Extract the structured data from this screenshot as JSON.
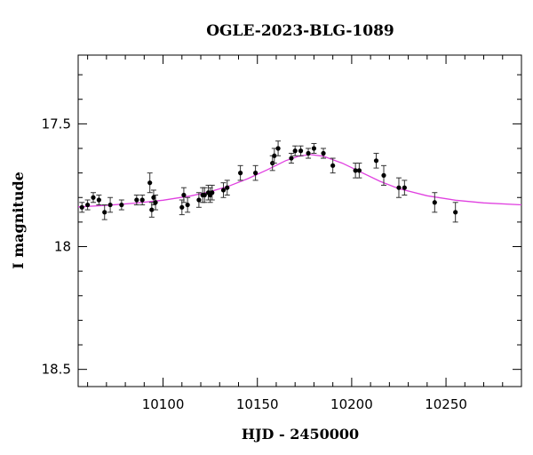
{
  "chart_data": {
    "type": "scatter",
    "title": "OGLE-2023-BLG-1089",
    "xlabel": "HJD - 2450000",
    "ylabel": "I magnitude",
    "xlim": [
      10055,
      10290
    ],
    "ylim": [
      18.57,
      17.22
    ],
    "y_inverted": true,
    "x_ticks": [
      10100,
      10150,
      10200,
      10250
    ],
    "x_tick_labels": [
      "10100",
      "10150",
      "10200",
      "10250"
    ],
    "y_ticks": [
      17.5,
      18,
      18.5
    ],
    "y_tick_labels": [
      "17.5",
      "18",
      "18.5"
    ],
    "grid": false,
    "legend": "none",
    "colors": {
      "points": "#000000",
      "model": "#e040e0",
      "axes": "#000000"
    },
    "series": [
      {
        "kind": "points",
        "x": [
          10057,
          10060,
          10063,
          10066,
          10069,
          10072,
          10078,
          10086,
          10089,
          10093,
          10094,
          10095,
          10096,
          10110,
          10111,
          10113,
          10119,
          10121,
          10122,
          10124,
          10125,
          10126,
          10132,
          10134,
          10141,
          10149,
          10158,
          10159,
          10161,
          10168,
          10170,
          10173,
          10177,
          10180,
          10185,
          10190,
          10202,
          10204,
          10213,
          10217,
          10225,
          10228,
          10244,
          10255
        ],
        "y": [
          17.84,
          17.83,
          17.8,
          17.81,
          17.86,
          17.83,
          17.83,
          17.81,
          17.81,
          17.74,
          17.85,
          17.8,
          17.82,
          17.84,
          17.79,
          17.83,
          17.81,
          17.79,
          17.79,
          17.78,
          17.79,
          17.78,
          17.77,
          17.76,
          17.7,
          17.7,
          17.66,
          17.63,
          17.6,
          17.64,
          17.61,
          17.61,
          17.62,
          17.6,
          17.62,
          17.67,
          17.69,
          17.69,
          17.65,
          17.71,
          17.76,
          17.76,
          17.82,
          17.86
        ],
        "err": [
          0.02,
          0.02,
          0.02,
          0.02,
          0.03,
          0.03,
          0.02,
          0.02,
          0.02,
          0.04,
          0.03,
          0.03,
          0.03,
          0.03,
          0.03,
          0.03,
          0.03,
          0.03,
          0.03,
          0.03,
          0.03,
          0.03,
          0.03,
          0.03,
          0.03,
          0.03,
          0.03,
          0.03,
          0.03,
          0.02,
          0.02,
          0.02,
          0.02,
          0.02,
          0.02,
          0.03,
          0.03,
          0.03,
          0.03,
          0.04,
          0.04,
          0.03,
          0.04,
          0.04
        ]
      },
      {
        "kind": "model",
        "x": [
          10055,
          10070,
          10085,
          10100,
          10115,
          10125,
          10135,
          10145,
          10155,
          10165,
          10172,
          10178,
          10185,
          10195,
          10205,
          10215,
          10225,
          10240,
          10255,
          10270,
          10290
        ],
        "y": [
          17.838,
          17.832,
          17.823,
          17.811,
          17.793,
          17.776,
          17.753,
          17.723,
          17.688,
          17.65,
          17.632,
          17.625,
          17.632,
          17.66,
          17.697,
          17.734,
          17.764,
          17.793,
          17.811,
          17.822,
          17.83
        ]
      }
    ]
  }
}
